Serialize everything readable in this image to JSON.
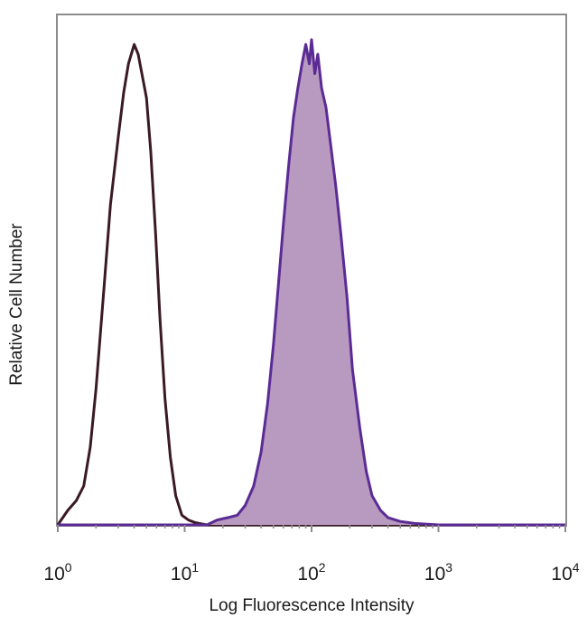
{
  "chart_data": {
    "type": "area",
    "title": "",
    "xlabel": "Log Fluorescence Intensity",
    "ylabel": "Relative Cell Number",
    "xscale": "log",
    "xlim": [
      1,
      10000
    ],
    "ylim": [
      0,
      1.05
    ],
    "grid": false,
    "legend": "none",
    "x_ticks": [
      {
        "base": "10",
        "exp": "0"
      },
      {
        "base": "10",
        "exp": "1"
      },
      {
        "base": "10",
        "exp": "2"
      },
      {
        "base": "10",
        "exp": "3"
      },
      {
        "base": "10",
        "exp": "4"
      }
    ],
    "series": [
      {
        "style": "outline",
        "color": "#3a1a24",
        "x": [
          1.0,
          1.2,
          1.4,
          1.6,
          1.8,
          2.0,
          2.3,
          2.6,
          3.0,
          3.3,
          3.6,
          4.0,
          4.3,
          4.6,
          5.0,
          5.4,
          5.9,
          6.4,
          7.0,
          7.7,
          8.5,
          9.5,
          10.7,
          12.0,
          13.5,
          15.0,
          20.0,
          100.0,
          1000.0,
          10000.0
        ],
        "y": [
          0.0,
          0.03,
          0.05,
          0.08,
          0.16,
          0.28,
          0.48,
          0.66,
          0.8,
          0.89,
          0.95,
          0.99,
          0.97,
          0.93,
          0.88,
          0.77,
          0.6,
          0.42,
          0.26,
          0.14,
          0.06,
          0.02,
          0.01,
          0.005,
          0.002,
          0.0,
          0.0,
          0.0,
          0.0,
          0.0
        ]
      },
      {
        "style": "filled",
        "color": "#5b2b95",
        "fill": "#b89ac0",
        "x": [
          1.0,
          5.0,
          10.0,
          15.0,
          18.0,
          22.0,
          26.0,
          30.0,
          35.0,
          40.0,
          45.0,
          50.0,
          55.0,
          60.0,
          66.0,
          72.0,
          78.0,
          84.0,
          90.0,
          96.0,
          100.0,
          106.0,
          112.0,
          120.0,
          130.0,
          142.0,
          155.0,
          170.0,
          190.0,
          210.0,
          240.0,
          270.0,
          300.0,
          350.0,
          400.0,
          500.0,
          650.0,
          1000.0,
          10000.0
        ],
        "y": [
          0.0,
          0.0,
          0.0,
          0.0,
          0.01,
          0.015,
          0.02,
          0.04,
          0.08,
          0.15,
          0.25,
          0.37,
          0.5,
          0.62,
          0.74,
          0.84,
          0.9,
          0.95,
          0.99,
          0.95,
          1.0,
          0.93,
          0.97,
          0.9,
          0.86,
          0.78,
          0.7,
          0.6,
          0.47,
          0.32,
          0.2,
          0.11,
          0.06,
          0.03,
          0.015,
          0.007,
          0.003,
          0.0,
          0.0
        ]
      }
    ]
  }
}
